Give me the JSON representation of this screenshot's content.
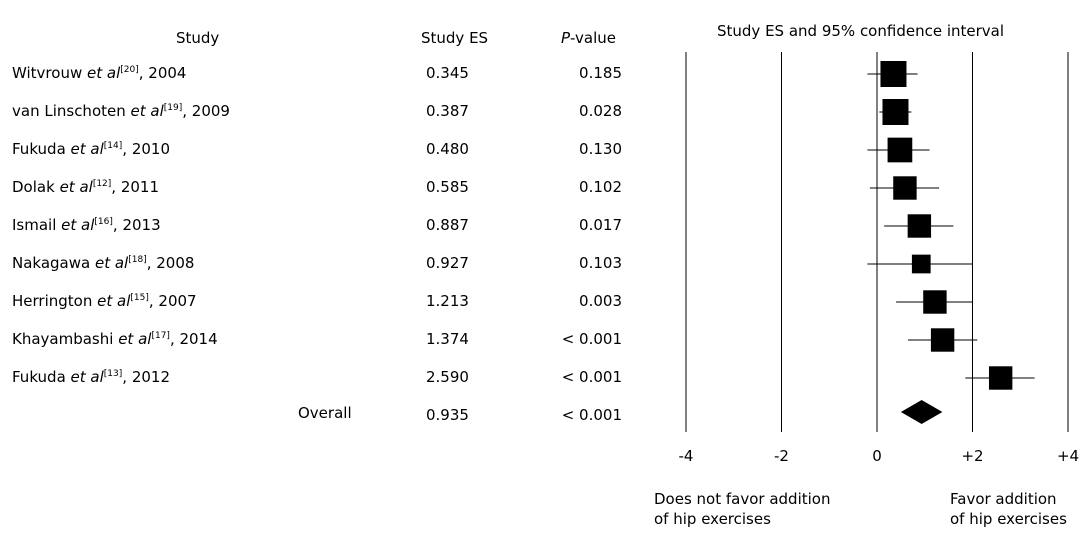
{
  "headers": {
    "study": "Study",
    "es": "Study ES",
    "p_prefix": "P",
    "p_suffix": "-value",
    "plot": "Study ES and 95% confidence interval"
  },
  "studies": [
    {
      "author": "Witvrouw",
      "etal": "et al",
      "ref": "[20]",
      "year": ", 2004",
      "es": "0.345",
      "p": "0.185"
    },
    {
      "author": "van Linschoten",
      "etal": "et al",
      "ref": "[19]",
      "year": ", 2009",
      "es": "0.387",
      "p": "0.028"
    },
    {
      "author": "Fukuda",
      "etal": "et al",
      "ref": "[14]",
      "year": ", 2010",
      "es": "0.480",
      "p": "0.130"
    },
    {
      "author": "Dolak",
      "etal": "et al",
      "ref": "[12]",
      "year": ", 2011",
      "es": "0.585",
      "p": "0.102"
    },
    {
      "author": "Ismail",
      "etal": "et al",
      "ref": "[16]",
      "year": ", 2013",
      "es": "0.887",
      "p": "0.017"
    },
    {
      "author": "Nakagawa",
      "etal": "et al",
      "ref": "[18]",
      "year": ", 2008",
      "es": "0.927",
      "p": "0.103"
    },
    {
      "author": "Herrington",
      "etal": "et al",
      "ref": "[15]",
      "year": ", 2007",
      "es": "1.213",
      "p": "0.003"
    },
    {
      "author": "Khayambashi",
      "etal": "et al",
      "ref": "[17]",
      "year": ", 2014",
      "es": "1.374",
      "p": "< 0.001"
    },
    {
      "author": "Fukuda",
      "etal": "et al",
      "ref": "[13]",
      "year": ", 2012",
      "es": "2.590",
      "p": "< 0.001"
    }
  ],
  "overall": {
    "label": "Overall",
    "es": "0.935",
    "p": "< 0.001"
  },
  "footer": {
    "left_line1": "Does not favor addition",
    "left_line2": "of hip exercises",
    "right_line1": "Favor addition",
    "right_line2": "of hip exercises"
  },
  "chart_data": {
    "type": "forest",
    "title": "Study ES and 95% confidence interval",
    "x_ticks": [
      -4,
      -2,
      0,
      2,
      4
    ],
    "x_tick_labels": [
      "-4",
      "-2",
      "0",
      "+2",
      "+4"
    ],
    "xlim": [
      -4,
      4
    ],
    "reference_lines": [
      -4,
      -2,
      0,
      2,
      4
    ],
    "points": [
      {
        "es": 0.345,
        "lower": -0.2,
        "upper": 0.85,
        "weight": 1.0
      },
      {
        "es": 0.387,
        "lower": 0.05,
        "upper": 0.72,
        "weight": 1.0
      },
      {
        "es": 0.48,
        "lower": -0.2,
        "upper": 1.1,
        "weight": 0.95
      },
      {
        "es": 0.585,
        "lower": -0.15,
        "upper": 1.3,
        "weight": 0.9
      },
      {
        "es": 0.887,
        "lower": 0.15,
        "upper": 1.6,
        "weight": 0.9
      },
      {
        "es": 0.927,
        "lower": -0.2,
        "upper": 2.0,
        "weight": 0.72
      },
      {
        "es": 1.213,
        "lower": 0.4,
        "upper": 2.0,
        "weight": 0.9
      },
      {
        "es": 1.374,
        "lower": 0.65,
        "upper": 2.1,
        "weight": 0.9
      },
      {
        "es": 2.59,
        "lower": 1.85,
        "upper": 3.3,
        "weight": 0.9
      }
    ],
    "overall": {
      "es": 0.935,
      "lower": 0.5,
      "upper": 1.37
    }
  }
}
